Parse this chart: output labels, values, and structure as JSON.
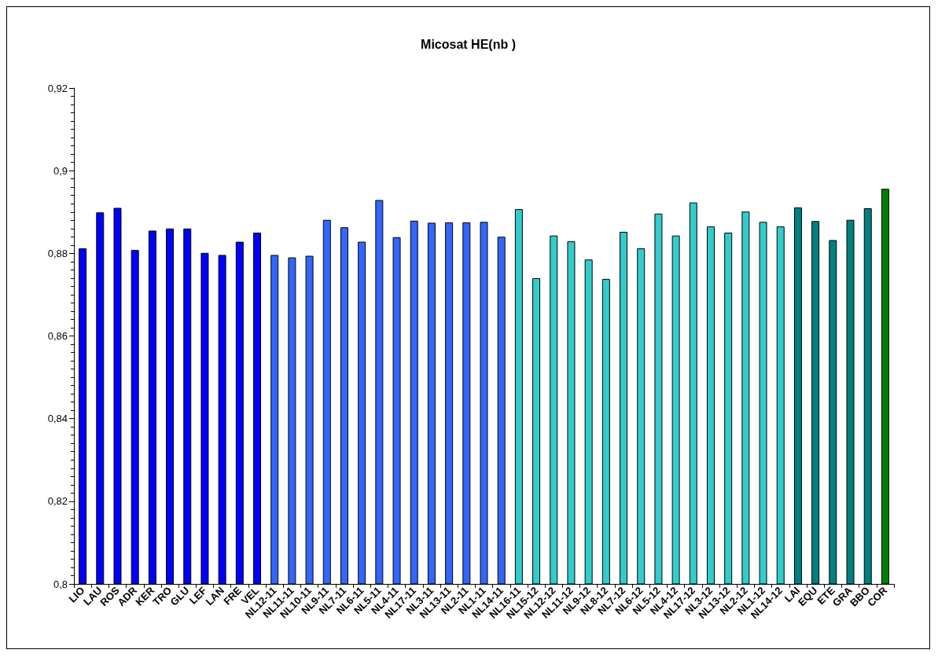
{
  "chart_data": {
    "type": "bar",
    "title": "Micosat HE(nb )",
    "categories": [
      "LIO",
      "LAU",
      "ROS",
      "ADR",
      "KER",
      "TRO",
      "GLU",
      "LEF",
      "LAN",
      "FRE",
      "VEL",
      "NL12-11",
      "NL11-11",
      "NL10-11",
      "NL9-11",
      "NL7-11",
      "NL6-11",
      "NL5-11",
      "NL4-11",
      "NL17-11",
      "NL3-11",
      "NL13-11",
      "NL2-11",
      "NL1-11",
      "NL14-11",
      "NL16-11",
      "NL15-12",
      "NL12-12",
      "NL11-12",
      "NL9-12",
      "NL8-12",
      "NL7-12",
      "NL6-12",
      "NL5-12",
      "NL4-12",
      "NL17-12",
      "NL3-12",
      "NL13-12",
      "NL2-12",
      "NL1-12",
      "NL14-12",
      "LAI",
      "EQU",
      "ETE",
      "GRA",
      "BBO",
      "COR"
    ],
    "values": [
      0.8812,
      0.8899,
      0.891,
      0.8808,
      0.8855,
      0.886,
      0.886,
      0.8801,
      0.8796,
      0.8828,
      0.885,
      0.8796,
      0.879,
      0.8794,
      0.8881,
      0.8863,
      0.8828,
      0.8929,
      0.8839,
      0.8879,
      0.8874,
      0.8875,
      0.8875,
      0.8876,
      0.884,
      0.8907,
      0.874,
      0.8843,
      0.8829,
      0.8785,
      0.8738,
      0.8852,
      0.8812,
      0.8896,
      0.8843,
      0.8923,
      0.8865,
      0.885,
      0.8901,
      0.8876,
      0.8865,
      0.8911,
      0.8878,
      0.8832,
      0.8881,
      0.8909,
      0.8956
    ],
    "colors": [
      "#0000ff",
      "#0000ff",
      "#0000ff",
      "#0000ff",
      "#0000ff",
      "#0000ff",
      "#0000ff",
      "#0000ff",
      "#0000ff",
      "#0000ff",
      "#0000ff",
      "#3366ff",
      "#3366ff",
      "#3366ff",
      "#3366ff",
      "#3366ff",
      "#3366ff",
      "#3366ff",
      "#3366ff",
      "#3366ff",
      "#3366ff",
      "#3366ff",
      "#3366ff",
      "#3366ff",
      "#3366ff",
      "#33cccc",
      "#33cccc",
      "#33cccc",
      "#33cccc",
      "#33cccc",
      "#33cccc",
      "#33cccc",
      "#33cccc",
      "#33cccc",
      "#33cccc",
      "#33cccc",
      "#33cccc",
      "#33cccc",
      "#33cccc",
      "#33cccc",
      "#33cccc",
      "#008080",
      "#008080",
      "#008080",
      "#008080",
      "#008080",
      "#008000"
    ],
    "ylim": [
      0.8,
      0.92
    ],
    "yticks": [
      {
        "value": 0.8,
        "label": "0,8"
      },
      {
        "value": 0.82,
        "label": "0,82"
      },
      {
        "value": 0.84,
        "label": "0,84"
      },
      {
        "value": 0.86,
        "label": "0,86"
      },
      {
        "value": 0.88,
        "label": "0,88"
      },
      {
        "value": 0.9,
        "label": "0,9"
      },
      {
        "value": 0.92,
        "label": "0,92"
      }
    ],
    "grid": false
  }
}
